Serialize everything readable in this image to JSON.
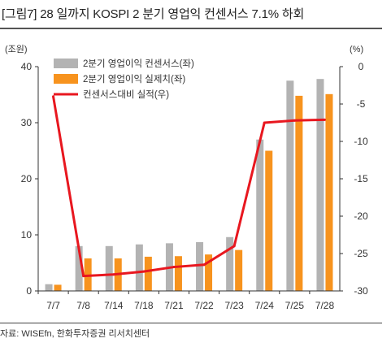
{
  "title": "[그림7]  28 일까지 KOSPI 2 분기 영업익 컨센서스 7.1% 하회",
  "source": "자료: WISEfn, 한화투자증권 리서치센터",
  "chart_data": {
    "type": "bar",
    "categories": [
      "7/7",
      "7/8",
      "7/14",
      "7/18",
      "7/21",
      "7/22",
      "7/23",
      "7/24",
      "7/25",
      "7/28"
    ],
    "series": [
      {
        "name": "2분기 영업이익 컨센서스(좌)",
        "type": "bar",
        "axis": "left",
        "color": "#b3b3b3",
        "values": [
          1.2,
          8.0,
          8.0,
          8.3,
          8.5,
          8.7,
          9.6,
          27.0,
          37.5,
          37.8
        ]
      },
      {
        "name": "2분기 영업이익 실제치(좌)",
        "type": "bar",
        "axis": "left",
        "color": "#f7931e",
        "values": [
          1.1,
          5.8,
          5.8,
          6.1,
          6.2,
          6.5,
          7.3,
          25.0,
          34.8,
          35.1
        ]
      },
      {
        "name": "컨센서스대비 실적(우)",
        "type": "line",
        "axis": "right",
        "color": "#e8171f",
        "values": [
          -4.0,
          -28.0,
          -27.8,
          -27.4,
          -26.8,
          -26.5,
          -24.0,
          -7.5,
          -7.2,
          -7.1
        ]
      }
    ],
    "left_axis": {
      "unit": "(조원)",
      "ylim": [
        0,
        40
      ],
      "ticks": [
        0,
        10,
        20,
        30,
        40
      ]
    },
    "right_axis": {
      "unit": "(%)",
      "ylim": [
        -30,
        0
      ],
      "ticks": [
        0,
        -5,
        -10,
        -15,
        -20,
        -25,
        -30
      ]
    },
    "legend": "top-center",
    "grid": false
  }
}
